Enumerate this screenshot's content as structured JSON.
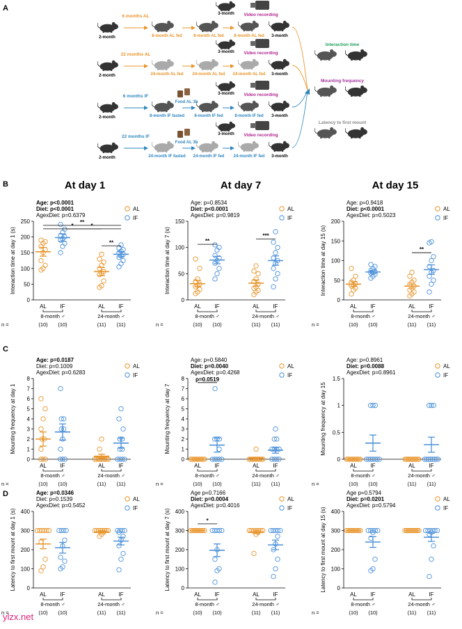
{
  "panel_letters": [
    "A",
    "B",
    "C",
    "D"
  ],
  "schematic": {
    "rows": [
      {
        "label": "6 months AL",
        "start": "2-month",
        "s2": "8-month AL fed",
        "s3": "8-month AL fed",
        "s4": "8-month AL fed",
        "color": "#e8942a"
      },
      {
        "label": "22 months AL",
        "start": "2-month",
        "s2": "24-month AL fed",
        "s3": "24-month AL fed",
        "s4": "24-month AL fed",
        "color": "#e8942a"
      },
      {
        "label": "6 months IF",
        "start": "2-month",
        "s2": "8-month IF fasted",
        "s3": "8-month IF fed",
        "s4": "8-month IF fed",
        "color": "#2e86c1",
        "food": "Food AL 3h"
      },
      {
        "label": "22 months IF",
        "start": "2-month",
        "s2": "24-month IF fasted",
        "s3": "24-month IF fed",
        "s4": "24-month IF fed",
        "color": "#2e86c1",
        "food": "Food AL 3h"
      }
    ],
    "partner_label": "3-month",
    "video_label": "Video recording",
    "outcomes": [
      "Interaction time",
      "Mounting frequency",
      "Latency to first mount"
    ],
    "outcome_colors": [
      "#1e9e5a",
      "#a2329e",
      "#888888"
    ]
  },
  "columns": [
    "At day 1",
    "At day 7",
    "At day 15"
  ],
  "legend": {
    "al": "AL",
    "if": "IF",
    "al_color": "#e8942a",
    "if_color": "#4a90d9"
  },
  "x_groups": {
    "ticks": [
      "AL",
      "IF",
      "AL",
      "IF"
    ],
    "group1": "8-month ♂",
    "group2": "24-month ♂",
    "n_label": "n =",
    "n": [
      "(10)",
      "(10)",
      "(11)",
      "(11)"
    ]
  },
  "chart_data": [
    {
      "id": "B1",
      "type": "scatter",
      "ylabel": "Interaction time at day 1 (s)",
      "ylim": [
        0,
        250
      ],
      "ticks": [
        0,
        50,
        100,
        150,
        200,
        250
      ],
      "stats": [
        {
          "text": "Age: p<0.0001",
          "bold": true
        },
        {
          "text": "Diet: p<0.0001",
          "bold": true
        },
        {
          "text": "AgexDiet: p=0.6379",
          "bold": false
        }
      ],
      "groups": [
        {
          "name": "8-month AL",
          "diet": "AL",
          "mean": 153,
          "sem": 14,
          "points": [
            95,
            100,
            110,
            125,
            150,
            160,
            170,
            180,
            185,
            190
          ]
        },
        {
          "name": "8-month IF",
          "diet": "IF",
          "mean": 198,
          "sem": 12,
          "points": [
            150,
            170,
            180,
            190,
            195,
            200,
            205,
            215,
            225,
            240
          ]
        },
        {
          "name": "24-month AL",
          "diet": "AL",
          "mean": 90,
          "sem": 13,
          "points": [
            40,
            45,
            60,
            80,
            85,
            90,
            100,
            110,
            120,
            130,
            145
          ]
        },
        {
          "name": "24-month IF",
          "diet": "IF",
          "mean": 145,
          "sem": 8,
          "points": [
            105,
            115,
            125,
            135,
            140,
            145,
            150,
            155,
            160,
            165,
            175
          ]
        }
      ],
      "sig": [
        {
          "a": 0,
          "b": 2,
          "y": 226,
          "label": "*"
        },
        {
          "a": 0,
          "b": 3,
          "y": 237,
          "label": "**"
        },
        {
          "a": 1,
          "b": 3,
          "y": 226,
          "label": "*"
        },
        {
          "a": 2,
          "b": 3,
          "y": 172,
          "label": "**"
        }
      ]
    },
    {
      "id": "B7",
      "type": "scatter",
      "ylabel": "Interaction time at day 7 (s)",
      "ylim": [
        0,
        150
      ],
      "ticks": [
        0,
        50,
        100,
        150
      ],
      "stats": [
        {
          "text": "Age: p=0.8534",
          "bold": false
        },
        {
          "text": "Diet: p<0.0001",
          "bold": true
        },
        {
          "text": "AgexDiet: p=0.9819",
          "bold": false
        }
      ],
      "groups": [
        {
          "name": "8-month AL",
          "diet": "AL",
          "mean": 31,
          "sem": 6,
          "points": [
            12,
            15,
            20,
            25,
            28,
            30,
            35,
            40,
            60,
            78
          ]
        },
        {
          "name": "8-month IF",
          "diet": "IF",
          "mean": 76,
          "sem": 7,
          "points": [
            40,
            50,
            60,
            70,
            75,
            80,
            85,
            95,
            100,
            105
          ]
        },
        {
          "name": "24-month AL",
          "diet": "AL",
          "mean": 32,
          "sem": 6,
          "points": [
            10,
            15,
            18,
            22,
            25,
            30,
            35,
            40,
            50,
            55,
            65
          ]
        },
        {
          "name": "24-month IF",
          "diet": "IF",
          "mean": 75,
          "sem": 9,
          "points": [
            25,
            40,
            50,
            60,
            70,
            75,
            80,
            90,
            100,
            110,
            130
          ]
        }
      ],
      "sig": [
        {
          "a": 0,
          "b": 1,
          "y": 106,
          "label": "**"
        },
        {
          "a": 2,
          "b": 3,
          "y": 116,
          "label": "***"
        }
      ]
    },
    {
      "id": "B15",
      "type": "scatter",
      "ylabel": "Interaction time at day 15 (s)",
      "ylim": [
        0,
        200
      ],
      "ticks": [
        0,
        50,
        100,
        150,
        200
      ],
      "stats": [
        {
          "text": "Age: p=0.9418",
          "bold": false
        },
        {
          "text": "Diet: p<0.0001",
          "bold": true
        },
        {
          "text": "AgexDiet: p=0.5023",
          "bold": false
        }
      ],
      "groups": [
        {
          "name": "8-month AL",
          "diet": "AL",
          "mean": 40,
          "sem": 6,
          "points": [
            15,
            25,
            30,
            35,
            38,
            42,
            45,
            50,
            60,
            80
          ]
        },
        {
          "name": "8-month IF",
          "diet": "IF",
          "mean": 71,
          "sem": 4,
          "points": [
            55,
            60,
            65,
            68,
            70,
            72,
            75,
            80,
            85,
            90
          ]
        },
        {
          "name": "24-month AL",
          "diet": "AL",
          "mean": 35,
          "sem": 5,
          "points": [
            10,
            15,
            20,
            25,
            30,
            35,
            40,
            45,
            50,
            60,
            70
          ]
        },
        {
          "name": "24-month IF",
          "diet": "IF",
          "mean": 77,
          "sem": 12,
          "points": [
            20,
            40,
            50,
            60,
            70,
            75,
            85,
            100,
            110,
            145,
            148
          ]
        }
      ],
      "sig": [
        {
          "a": 2,
          "b": 3,
          "y": 120,
          "label": "**"
        }
      ]
    },
    {
      "id": "C1",
      "type": "scatter",
      "ylabel": "Mounting frequency at day 1",
      "ylim": [
        0,
        8
      ],
      "ticks": [
        0,
        1,
        2,
        3,
        4,
        5,
        6,
        7,
        8
      ],
      "stats": [
        {
          "text": "Age: p=0.0187",
          "bold": true
        },
        {
          "text": "Diet: p=0.1009",
          "bold": false
        },
        {
          "text": "AgexDiet: p=0.6283",
          "bold": false
        }
      ],
      "groups": [
        {
          "name": "8-month AL",
          "diet": "AL",
          "mean": 2.0,
          "sem": 0.7,
          "points": [
            0,
            0,
            0,
            1,
            2,
            2,
            3,
            4,
            5,
            6
          ]
        },
        {
          "name": "8-month IF",
          "diet": "IF",
          "mean": 2.7,
          "sem": 0.8,
          "points": [
            0,
            0,
            0,
            1,
            2,
            3,
            3,
            4,
            4,
            7
          ]
        },
        {
          "name": "24-month AL",
          "diet": "AL",
          "mean": 0.3,
          "sem": 0.2,
          "points": [
            0,
            0,
            0,
            0,
            0,
            0,
            0,
            0,
            0,
            1,
            2
          ]
        },
        {
          "name": "24-month IF",
          "diet": "IF",
          "mean": 1.6,
          "sem": 0.5,
          "points": [
            0,
            0,
            0,
            0,
            1,
            1,
            2,
            2,
            3,
            4,
            5
          ]
        }
      ],
      "sig": []
    },
    {
      "id": "C7",
      "type": "scatter",
      "ylabel": "Mounting frequency at day 7",
      "ylim": [
        0,
        8
      ],
      "ticks": [
        0,
        1,
        2,
        3,
        4,
        5,
        6,
        7,
        8
      ],
      "stats": [
        {
          "text": "Age: p=0.5840",
          "bold": false
        },
        {
          "text": "Diet: p=0.0040",
          "bold": true
        },
        {
          "text": "AgexDiet: p=0.4268",
          "bold": false
        }
      ],
      "groups": [
        {
          "name": "8-month AL",
          "diet": "AL",
          "mean": 0,
          "sem": 0,
          "points": [
            0,
            0,
            0,
            0,
            0,
            0,
            0,
            0,
            0,
            0
          ]
        },
        {
          "name": "8-month IF",
          "diet": "IF",
          "mean": 1.4,
          "sem": 0.7,
          "points": [
            0,
            0,
            0,
            0,
            0,
            1,
            2,
            2,
            2,
            7
          ]
        },
        {
          "name": "24-month AL",
          "diet": "AL",
          "mean": 0.1,
          "sem": 0.1,
          "points": [
            0,
            0,
            0,
            0,
            0,
            0,
            0,
            0,
            0,
            0,
            1
          ]
        },
        {
          "name": "24-month IF",
          "diet": "IF",
          "mean": 0.9,
          "sem": 0.3,
          "points": [
            0,
            0,
            0,
            0,
            1,
            1,
            1,
            1,
            2,
            2,
            3
          ]
        }
      ],
      "sig": [
        {
          "a": 0,
          "b": 1,
          "y": 7.6,
          "label": "p=0.0519"
        }
      ]
    },
    {
      "id": "C15",
      "type": "scatter",
      "ylabel": "Mounting frequency at day 15",
      "ylim": [
        0,
        1.5
      ],
      "ticks": [
        0,
        0.5,
        1.0,
        1.5
      ],
      "stats": [
        {
          "text": "Age: p=0.8961",
          "bold": false
        },
        {
          "text": "Diet: p=0.0088",
          "bold": true
        },
        {
          "text": "AgexDiet: p=0.8961",
          "bold": false
        }
      ],
      "groups": [
        {
          "name": "8-month AL",
          "diet": "AL",
          "mean": 0,
          "sem": 0,
          "points": [
            0,
            0,
            0,
            0,
            0,
            0,
            0,
            0,
            0,
            0
          ]
        },
        {
          "name": "8-month IF",
          "diet": "IF",
          "mean": 0.3,
          "sem": 0.15,
          "points": [
            0,
            0,
            0,
            0,
            0,
            0,
            0,
            1,
            1,
            1
          ]
        },
        {
          "name": "24-month AL",
          "diet": "AL",
          "mean": 0,
          "sem": 0,
          "points": [
            0,
            0,
            0,
            0,
            0,
            0,
            0,
            0,
            0,
            0,
            0
          ]
        },
        {
          "name": "24-month IF",
          "diet": "IF",
          "mean": 0.27,
          "sem": 0.14,
          "points": [
            0,
            0,
            0,
            0,
            0,
            0,
            0,
            0,
            1,
            1,
            1
          ]
        }
      ],
      "sig": []
    },
    {
      "id": "D1",
      "type": "scatter",
      "ylabel": "Latency to first mount at day 1 (s)",
      "ylim": [
        0,
        400
      ],
      "ticks": [
        0,
        100,
        200,
        300,
        400
      ],
      "stats": [
        {
          "text": "Age: p=0.0346",
          "bold": true
        },
        {
          "text": "Diet: p=0.1539",
          "bold": false
        },
        {
          "text": "AgexDiet: p=0.5452",
          "bold": false
        }
      ],
      "groups": [
        {
          "name": "8-month AL",
          "diet": "AL",
          "mean": 230,
          "sem": 25,
          "points": [
            90,
            110,
            150,
            240,
            300,
            300,
            300,
            300,
            300,
            300
          ]
        },
        {
          "name": "8-month IF",
          "diet": "IF",
          "mean": 210,
          "sem": 28,
          "points": [
            100,
            110,
            140,
            160,
            220,
            250,
            300,
            300,
            300,
            300
          ]
        },
        {
          "name": "24-month AL",
          "diet": "AL",
          "mean": 293,
          "sem": 6,
          "points": [
            270,
            280,
            290,
            300,
            300,
            300,
            300,
            300,
            300,
            300,
            300
          ]
        },
        {
          "name": "24-month IF",
          "diet": "IF",
          "mean": 245,
          "sem": 20,
          "points": [
            95,
            150,
            180,
            220,
            250,
            270,
            290,
            300,
            300,
            300,
            300
          ]
        }
      ],
      "sig": []
    },
    {
      "id": "D7",
      "type": "scatter",
      "ylabel": "Latency to first mount at day 7 (s)",
      "ylim": [
        0,
        400
      ],
      "ticks": [
        0,
        100,
        200,
        300,
        400
      ],
      "stats": [
        {
          "text": "Age p=0.7166",
          "bold": false
        },
        {
          "text": "Diet: p=0.0004",
          "bold": true
        },
        {
          "text": "AgexDiet: p=0.4016",
          "bold": false
        }
      ],
      "groups": [
        {
          "name": "8-month AL",
          "diet": "AL",
          "mean": 300,
          "sem": 0,
          "points": [
            300,
            300,
            300,
            300,
            300,
            300,
            300,
            300,
            300,
            300
          ]
        },
        {
          "name": "8-month IF",
          "diet": "IF",
          "mean": 197,
          "sem": 33,
          "points": [
            30,
            90,
            100,
            150,
            200,
            300,
            300,
            300,
            300,
            300
          ]
        },
        {
          "name": "24-month AL",
          "diet": "AL",
          "mean": 292,
          "sem": 8,
          "points": [
            180,
            280,
            290,
            300,
            300,
            300,
            300,
            300,
            300,
            300,
            300
          ]
        },
        {
          "name": "24-month IF",
          "diet": "IF",
          "mean": 225,
          "sem": 25,
          "points": [
            60,
            100,
            150,
            200,
            230,
            270,
            300,
            300,
            300,
            300,
            300
          ]
        }
      ],
      "sig": [
        {
          "a": 0,
          "b": 1,
          "y": 335,
          "label": "*"
        }
      ]
    },
    {
      "id": "D15",
      "type": "scatter",
      "ylabel": "Latency to first mount at day 15 (s)",
      "ylim": [
        0,
        400
      ],
      "ticks": [
        0,
        100,
        200,
        300,
        400
      ],
      "stats": [
        {
          "text": "Age p=0.5794",
          "bold": false
        },
        {
          "text": "Diet: p=0.0201",
          "bold": true
        },
        {
          "text": "AgexDiet: p=0.5794",
          "bold": false
        }
      ],
      "groups": [
        {
          "name": "8-month AL",
          "diet": "AL",
          "mean": 300,
          "sem": 0,
          "points": [
            300,
            300,
            300,
            300,
            300,
            300,
            300,
            300,
            300,
            300
          ]
        },
        {
          "name": "8-month IF",
          "diet": "IF",
          "mean": 240,
          "sem": 28,
          "points": [
            90,
            100,
            150,
            260,
            290,
            300,
            300,
            300,
            300,
            300
          ]
        },
        {
          "name": "24-month AL",
          "diet": "AL",
          "mean": 300,
          "sem": 0,
          "points": [
            300,
            300,
            300,
            300,
            300,
            300,
            300,
            300,
            300,
            300,
            300
          ]
        },
        {
          "name": "24-month IF",
          "diet": "IF",
          "mean": 265,
          "sem": 22,
          "points": [
            60,
            150,
            220,
            280,
            290,
            300,
            300,
            300,
            300,
            300,
            300
          ]
        }
      ],
      "sig": []
    }
  ],
  "watermark": "ylzx.net"
}
